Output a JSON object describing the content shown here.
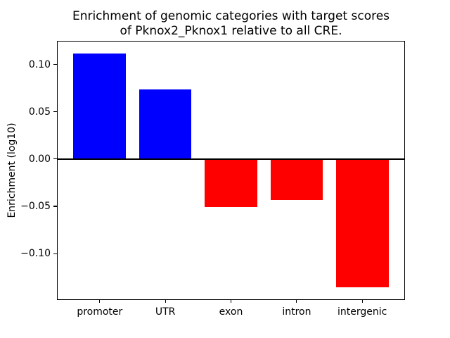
{
  "figure": {
    "title_display": "Enrichment of genomic categories with target scores\nof Pknox2_Pknox1 relative to all CRE.",
    "ylabel": "Enrichment (log10)",
    "background_color": "#ffffff"
  },
  "chart_data": {
    "type": "bar",
    "title": "Enrichment of genomic categories with target scores of Pknox2_Pknox1 relative to all CRE.",
    "xlabel": "",
    "ylabel": "Enrichment (log10)",
    "categories": [
      "promoter",
      "UTR",
      "exon",
      "intron",
      "intergenic"
    ],
    "values": [
      0.112,
      0.074,
      -0.051,
      -0.043,
      -0.136
    ],
    "bar_colors": [
      "#0000ff",
      "#0000ff",
      "#ff0000",
      "#ff0000",
      "#ff0000"
    ],
    "positive_color": "#0000ff",
    "negative_color": "#ff0000",
    "bar_width": 0.8,
    "xlim": [
      -0.64,
      4.64
    ],
    "ylim": [
      -0.1484,
      0.1244
    ],
    "yticks": [
      0.1,
      0.05,
      0.0,
      -0.05,
      -0.1
    ],
    "ytick_labels": [
      "0.10",
      "0.05",
      "0.00",
      "−0.05",
      "−0.10"
    ],
    "zero_line": true,
    "grid": false,
    "legend_position": "none"
  }
}
